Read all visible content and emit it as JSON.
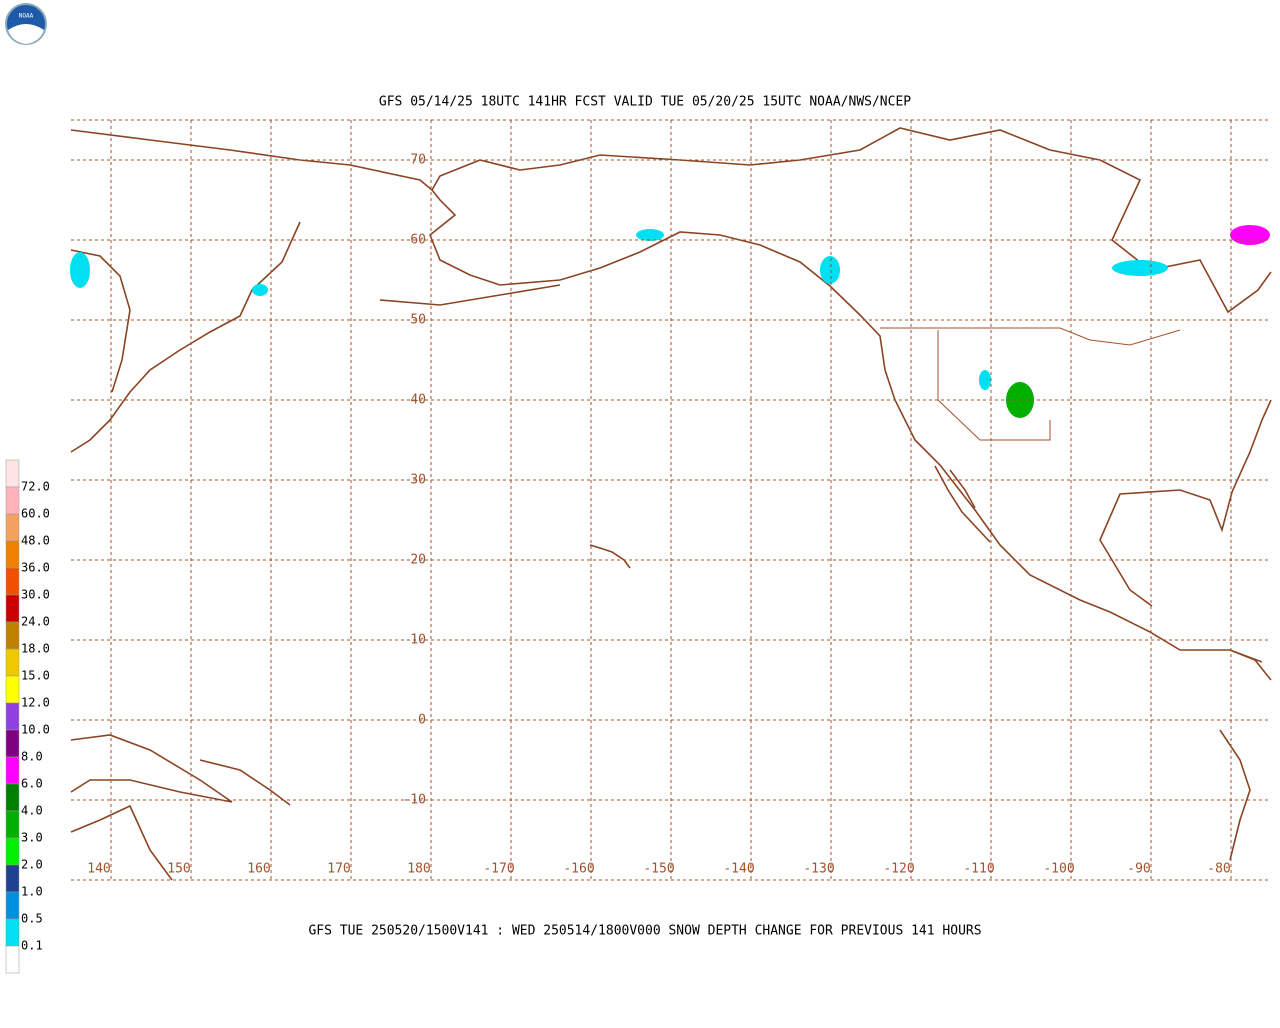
{
  "logo": "NOAA",
  "title": "GFS 05/14/25 18UTC 141HR FCST VALID TUE 05/20/25 15UTC NOAA/NWS/NCEP",
  "caption": "GFS TUE 250520/1500V141 : WED 250514/1800V000 SNOW DEPTH CHANGE FOR PREVIOUS 141 HOURS",
  "map": {
    "lonlim": [
      135,
      -75
    ],
    "latlim": [
      -20,
      75
    ],
    "lonticks": [
      140,
      150,
      160,
      170,
      180,
      -170,
      -160,
      -150,
      -140,
      -130,
      -120,
      -110,
      -100,
      -90,
      -80
    ],
    "latticks": [
      70,
      60,
      50,
      40,
      30,
      20,
      10,
      0,
      -10
    ],
    "grid_color": "#a0522d",
    "coast_color": "#8b4423"
  },
  "legend": {
    "labels": [
      "72.0",
      "60.0",
      "48.0",
      "36.0",
      "30.0",
      "24.0",
      "18.0",
      "15.0",
      "12.0",
      "10.0",
      "8.0",
      "6.0",
      "4.0",
      "3.0",
      "2.0",
      "1.0",
      "0.5",
      "0.1"
    ],
    "colors": [
      "#ffe4e4",
      "#ffb4bc",
      "#f4a060",
      "#f08000",
      "#f05000",
      "#c80000",
      "#c08000",
      "#f0c800",
      "#ffff00",
      "#9040e0",
      "#800080",
      "#ff00ff",
      "#008000",
      "#00b000",
      "#00f000",
      "#204090",
      "#0090e0",
      "#00e0f0",
      "#ffffff"
    ]
  }
}
